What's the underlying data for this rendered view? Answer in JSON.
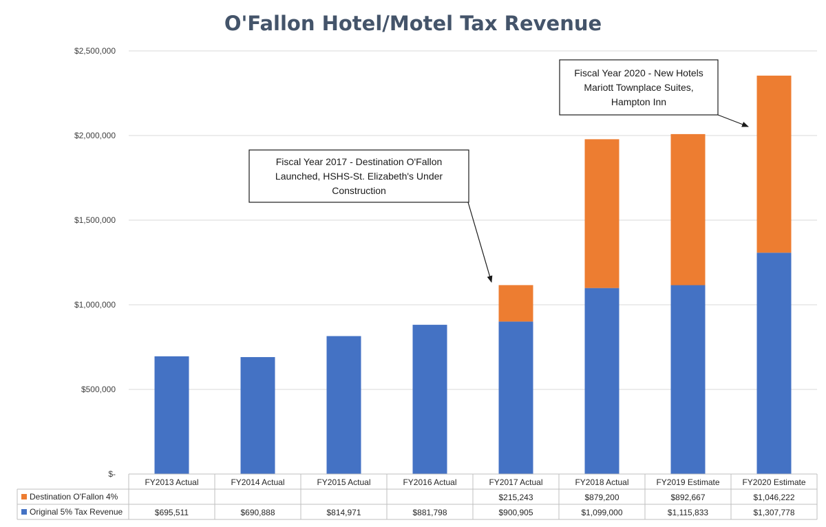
{
  "chart_data": {
    "type": "bar",
    "stacked": true,
    "title": "O'Fallon Hotel/Motel Tax Revenue",
    "categories": [
      "FY2013 Actual",
      "FY2014 Actual",
      "FY2015 Actual",
      "FY2016 Actual",
      "FY2017 Actual",
      "FY2018 Actual",
      "FY2019 Estimate",
      "FY2020 Estimate"
    ],
    "series": [
      {
        "name": "Original 5% Tax Revenue",
        "color": "#4472c4",
        "values": [
          695511,
          690888,
          814971,
          881798,
          900905,
          1099000,
          1115833,
          1307778
        ],
        "labels": [
          "$695,511",
          "$690,888",
          "$814,971",
          "$881,798",
          "$900,905",
          "$1,099,000",
          "$1,115,833",
          "$1,307,778"
        ]
      },
      {
        "name": "Destination O'Fallon 4%",
        "color": "#ed7d31",
        "values": [
          null,
          null,
          null,
          null,
          215243,
          879200,
          892667,
          1046222
        ],
        "labels": [
          "",
          "",
          "",
          "",
          "$215,243",
          "$879,200",
          "$892,667",
          "$1,046,222"
        ]
      }
    ],
    "ylim": [
      0,
      2500000
    ],
    "yticks": [
      0,
      500000,
      1000000,
      1500000,
      2000000,
      2500000
    ],
    "ytick_labels": [
      "$-",
      "$500,000",
      "$1,000,000",
      "$1,500,000",
      "$2,000,000",
      "$2,500,000"
    ],
    "grid": true,
    "data_table": true,
    "annotations": [
      {
        "lines": [
          "Fiscal Year 2017 - Destination O'Fallon",
          "Launched, HSHS-St. Elizabeth's Under",
          "Construction"
        ],
        "target_category": "FY2017 Actual"
      },
      {
        "lines": [
          "Fiscal Year 2020 - New Hotels",
          "Mariott Townplace Suites,",
          "Hampton Inn"
        ],
        "target_category": "FY2020 Estimate"
      }
    ]
  }
}
